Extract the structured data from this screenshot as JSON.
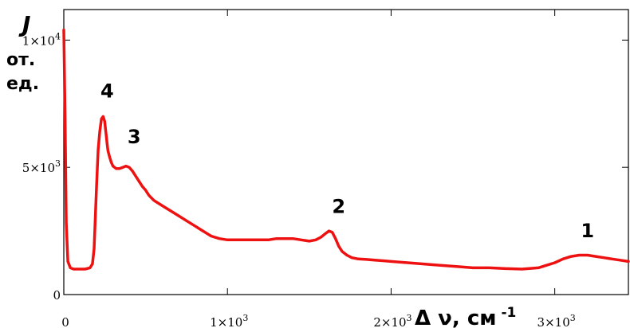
{
  "chart_data": {
    "type": "line",
    "ylabel_symbol": "J",
    "ylabel_unit_lines": [
      "от.",
      "ед."
    ],
    "xlabel": "Δ ν, см",
    "xlabel_exp": "-1",
    "xlim": [
      0,
      3450
    ],
    "ylim": [
      0,
      11200
    ],
    "x_ticks": [
      {
        "value": 0,
        "mantissa": "0",
        "exp": ""
      },
      {
        "value": 1000,
        "mantissa": "1×10",
        "exp": "3"
      },
      {
        "value": 2000,
        "mantissa": "2×10",
        "exp": "3"
      },
      {
        "value": 3000,
        "mantissa": "3×10",
        "exp": "3"
      }
    ],
    "y_ticks": [
      {
        "value": 0,
        "mantissa": "0",
        "exp": ""
      },
      {
        "value": 5000,
        "mantissa": "5×10",
        "exp": "3"
      },
      {
        "value": 10000,
        "mantissa": "1×10",
        "exp": "4"
      }
    ],
    "series": [
      {
        "color": "#ee1111",
        "x": [
          0,
          8,
          15,
          25,
          40,
          60,
          80,
          100,
          130,
          160,
          175,
          185,
          190,
          195,
          200,
          205,
          210,
          220,
          230,
          240,
          250,
          255,
          260,
          265,
          270,
          280,
          290,
          300,
          320,
          340,
          360,
          380,
          400,
          420,
          440,
          460,
          480,
          500,
          520,
          550,
          600,
          650,
          700,
          750,
          800,
          850,
          900,
          950,
          1000,
          1050,
          1100,
          1150,
          1200,
          1250,
          1300,
          1350,
          1400,
          1450,
          1500,
          1540,
          1570,
          1600,
          1620,
          1640,
          1660,
          1680,
          1700,
          1730,
          1760,
          1800,
          1850,
          1900,
          1950,
          2000,
          2100,
          2200,
          2300,
          2400,
          2500,
          2600,
          2700,
          2800,
          2900,
          2950,
          3000,
          3050,
          3100,
          3150,
          3200,
          3250,
          3300,
          3350,
          3400,
          3450
        ],
        "y": [
          10400,
          7000,
          2800,
          1300,
          1050,
          1000,
          1000,
          1000,
          1000,
          1050,
          1200,
          1800,
          2600,
          3400,
          4200,
          5000,
          5700,
          6400,
          6900,
          7000,
          6800,
          6500,
          6200,
          5900,
          5650,
          5400,
          5200,
          5050,
          4950,
          4950,
          5000,
          5050,
          5000,
          4850,
          4650,
          4450,
          4250,
          4100,
          3900,
          3700,
          3500,
          3300,
          3100,
          2900,
          2700,
          2500,
          2300,
          2200,
          2150,
          2150,
          2150,
          2150,
          2150,
          2150,
          2200,
          2200,
          2200,
          2150,
          2100,
          2150,
          2250,
          2400,
          2500,
          2450,
          2200,
          1900,
          1700,
          1550,
          1450,
          1400,
          1380,
          1350,
          1330,
          1300,
          1250,
          1200,
          1150,
          1100,
          1050,
          1050,
          1020,
          1000,
          1050,
          1150,
          1250,
          1400,
          1500,
          1550,
          1550,
          1500,
          1450,
          1400,
          1350,
          1300
        ]
      }
    ],
    "annotations": [
      {
        "text": "4",
        "x": 265,
        "y": 7750
      },
      {
        "text": "3",
        "x": 430,
        "y": 5950
      },
      {
        "text": "2",
        "x": 1680,
        "y": 3200
      },
      {
        "text": "1",
        "x": 3200,
        "y": 2250
      }
    ],
    "grid": false
  }
}
